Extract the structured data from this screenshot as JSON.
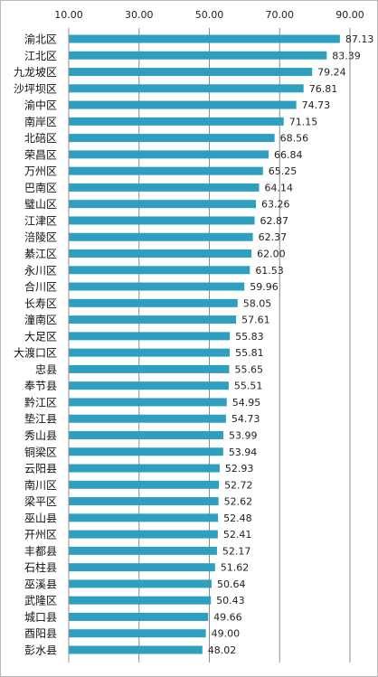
{
  "chart_data": {
    "type": "bar",
    "orientation": "horizontal",
    "title": "",
    "xlabel": "",
    "ylabel": "",
    "xlim": [
      10,
      90
    ],
    "x_ticks": [
      "10.00",
      "30.00",
      "50.00",
      "70.00",
      "90.00"
    ],
    "grid": "vertical gridlines",
    "legend": "none",
    "bar_color": "#2e9fbe",
    "gridline_color": "#8c8c8c",
    "categories": [
      "渝北区",
      "江北区",
      "九龙坡区",
      "沙坪坝区",
      "渝中区",
      "南岸区",
      "北碚区",
      "荣昌区",
      "万州区",
      "巴南区",
      "璧山区",
      "江津区",
      "涪陵区",
      "綦江区",
      "永川区",
      "合川区",
      "长寿区",
      "潼南区",
      "大足区",
      "大渡口区",
      "忠县",
      "奉节县",
      "黔江区",
      "垫江县",
      "秀山县",
      "铜梁区",
      "云阳县",
      "南川区",
      "梁平区",
      "巫山县",
      "开州区",
      "丰都县",
      "石柱县",
      "巫溪县",
      "武隆区",
      "城口县",
      "酉阳县",
      "彭水县"
    ],
    "values": [
      87.13,
      83.39,
      79.24,
      76.81,
      74.73,
      71.15,
      68.56,
      66.84,
      65.25,
      64.14,
      63.26,
      62.87,
      62.37,
      62.0,
      61.53,
      59.96,
      58.05,
      57.61,
      55.83,
      55.81,
      55.65,
      55.51,
      54.95,
      54.73,
      53.99,
      53.94,
      52.93,
      52.72,
      52.62,
      52.48,
      52.41,
      52.17,
      51.62,
      50.64,
      50.43,
      49.66,
      49.0,
      48.02
    ],
    "value_labels": [
      "87.13",
      "83.39",
      "79.24",
      "76.81",
      "74.73",
      "71.15",
      "68.56",
      "66.84",
      "65.25",
      "64.14",
      "63.26",
      "62.87",
      "62.37",
      "62.00",
      "61.53",
      "59.96",
      "58.05",
      "57.61",
      "55.83",
      "55.81",
      "55.65",
      "55.51",
      "54.95",
      "54.73",
      "53.99",
      "53.94",
      "52.93",
      "52.72",
      "52.62",
      "52.48",
      "52.41",
      "52.17",
      "51.62",
      "50.64",
      "50.43",
      "49.66",
      "49.00",
      "48.02"
    ]
  }
}
